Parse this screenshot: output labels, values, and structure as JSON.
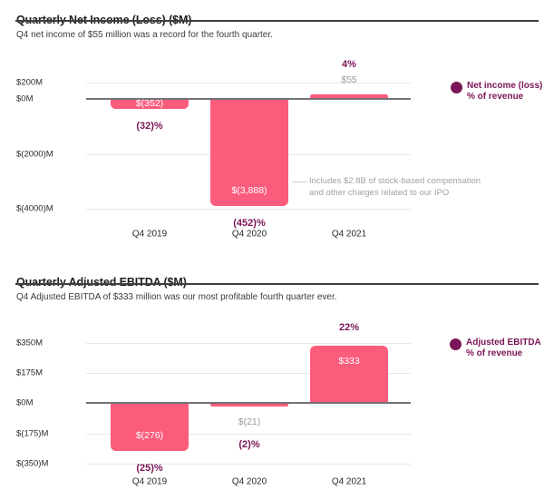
{
  "colors": {
    "bar": "#FB5C7C",
    "accent_purple": "#7A1557",
    "muted_gray": "#97999D",
    "annotation_gray": "#9EA2A6",
    "title": "#1E1F21",
    "gridline": "#E9E7EA",
    "zero_axis": "#717377"
  },
  "chart_data": [
    {
      "type": "bar",
      "title": "Quarterly Net Income (Loss) ($M)",
      "subtitle": "Q4 net income of $55 million was a record for the fourth quarter.",
      "categories": [
        "Q4 2019",
        "Q4 2020",
        "Q4 2021"
      ],
      "values": [
        -352,
        -3888,
        55
      ],
      "value_labels": [
        "$(352)",
        "$(3,888)",
        "$55"
      ],
      "pct_of_revenue": [
        "(32)%",
        "(452)%",
        "4%"
      ],
      "ylabel_unit": "$M",
      "grid": true,
      "yticks": [
        {
          "label": "$200M",
          "value": 200
        },
        {
          "label": "$0M",
          "value": 0
        },
        {
          "label": "$(2000)M",
          "value": -2000
        },
        {
          "label": "$(4000)M",
          "value": -4000
        }
      ],
      "legend": {
        "position": "right",
        "line1": "Net income (loss)",
        "line2": "% of revenue"
      },
      "annotation": {
        "target": "Q4 2020",
        "line1": "Includes $2.8B of stock-based compensation",
        "line2": "and other charges related to our IPO"
      }
    },
    {
      "type": "bar",
      "title": "Quarterly Adjusted EBITDA ($M)",
      "subtitle": "Q4 Adjusted EBITDA of $333 million was our most profitable fourth quarter ever.",
      "categories": [
        "Q4 2019",
        "Q4 2020",
        "Q4 2021"
      ],
      "values": [
        -276,
        -21,
        333
      ],
      "value_labels": [
        "$(276)",
        "$(21)",
        "$333"
      ],
      "pct_of_revenue": [
        "(25)%",
        "(2)%",
        "22%"
      ],
      "ylabel_unit": "$M",
      "grid": true,
      "yticks": [
        {
          "label": "$350M",
          "value": 350
        },
        {
          "label": "$175M",
          "value": 175
        },
        {
          "label": "$0M",
          "value": 0
        },
        {
          "label": "$(175)M",
          "value": -175
        },
        {
          "label": "$(350)M",
          "value": -350
        }
      ],
      "legend": {
        "position": "right",
        "line1": "Adjusted EBITDA",
        "line2": "% of revenue"
      }
    }
  ]
}
